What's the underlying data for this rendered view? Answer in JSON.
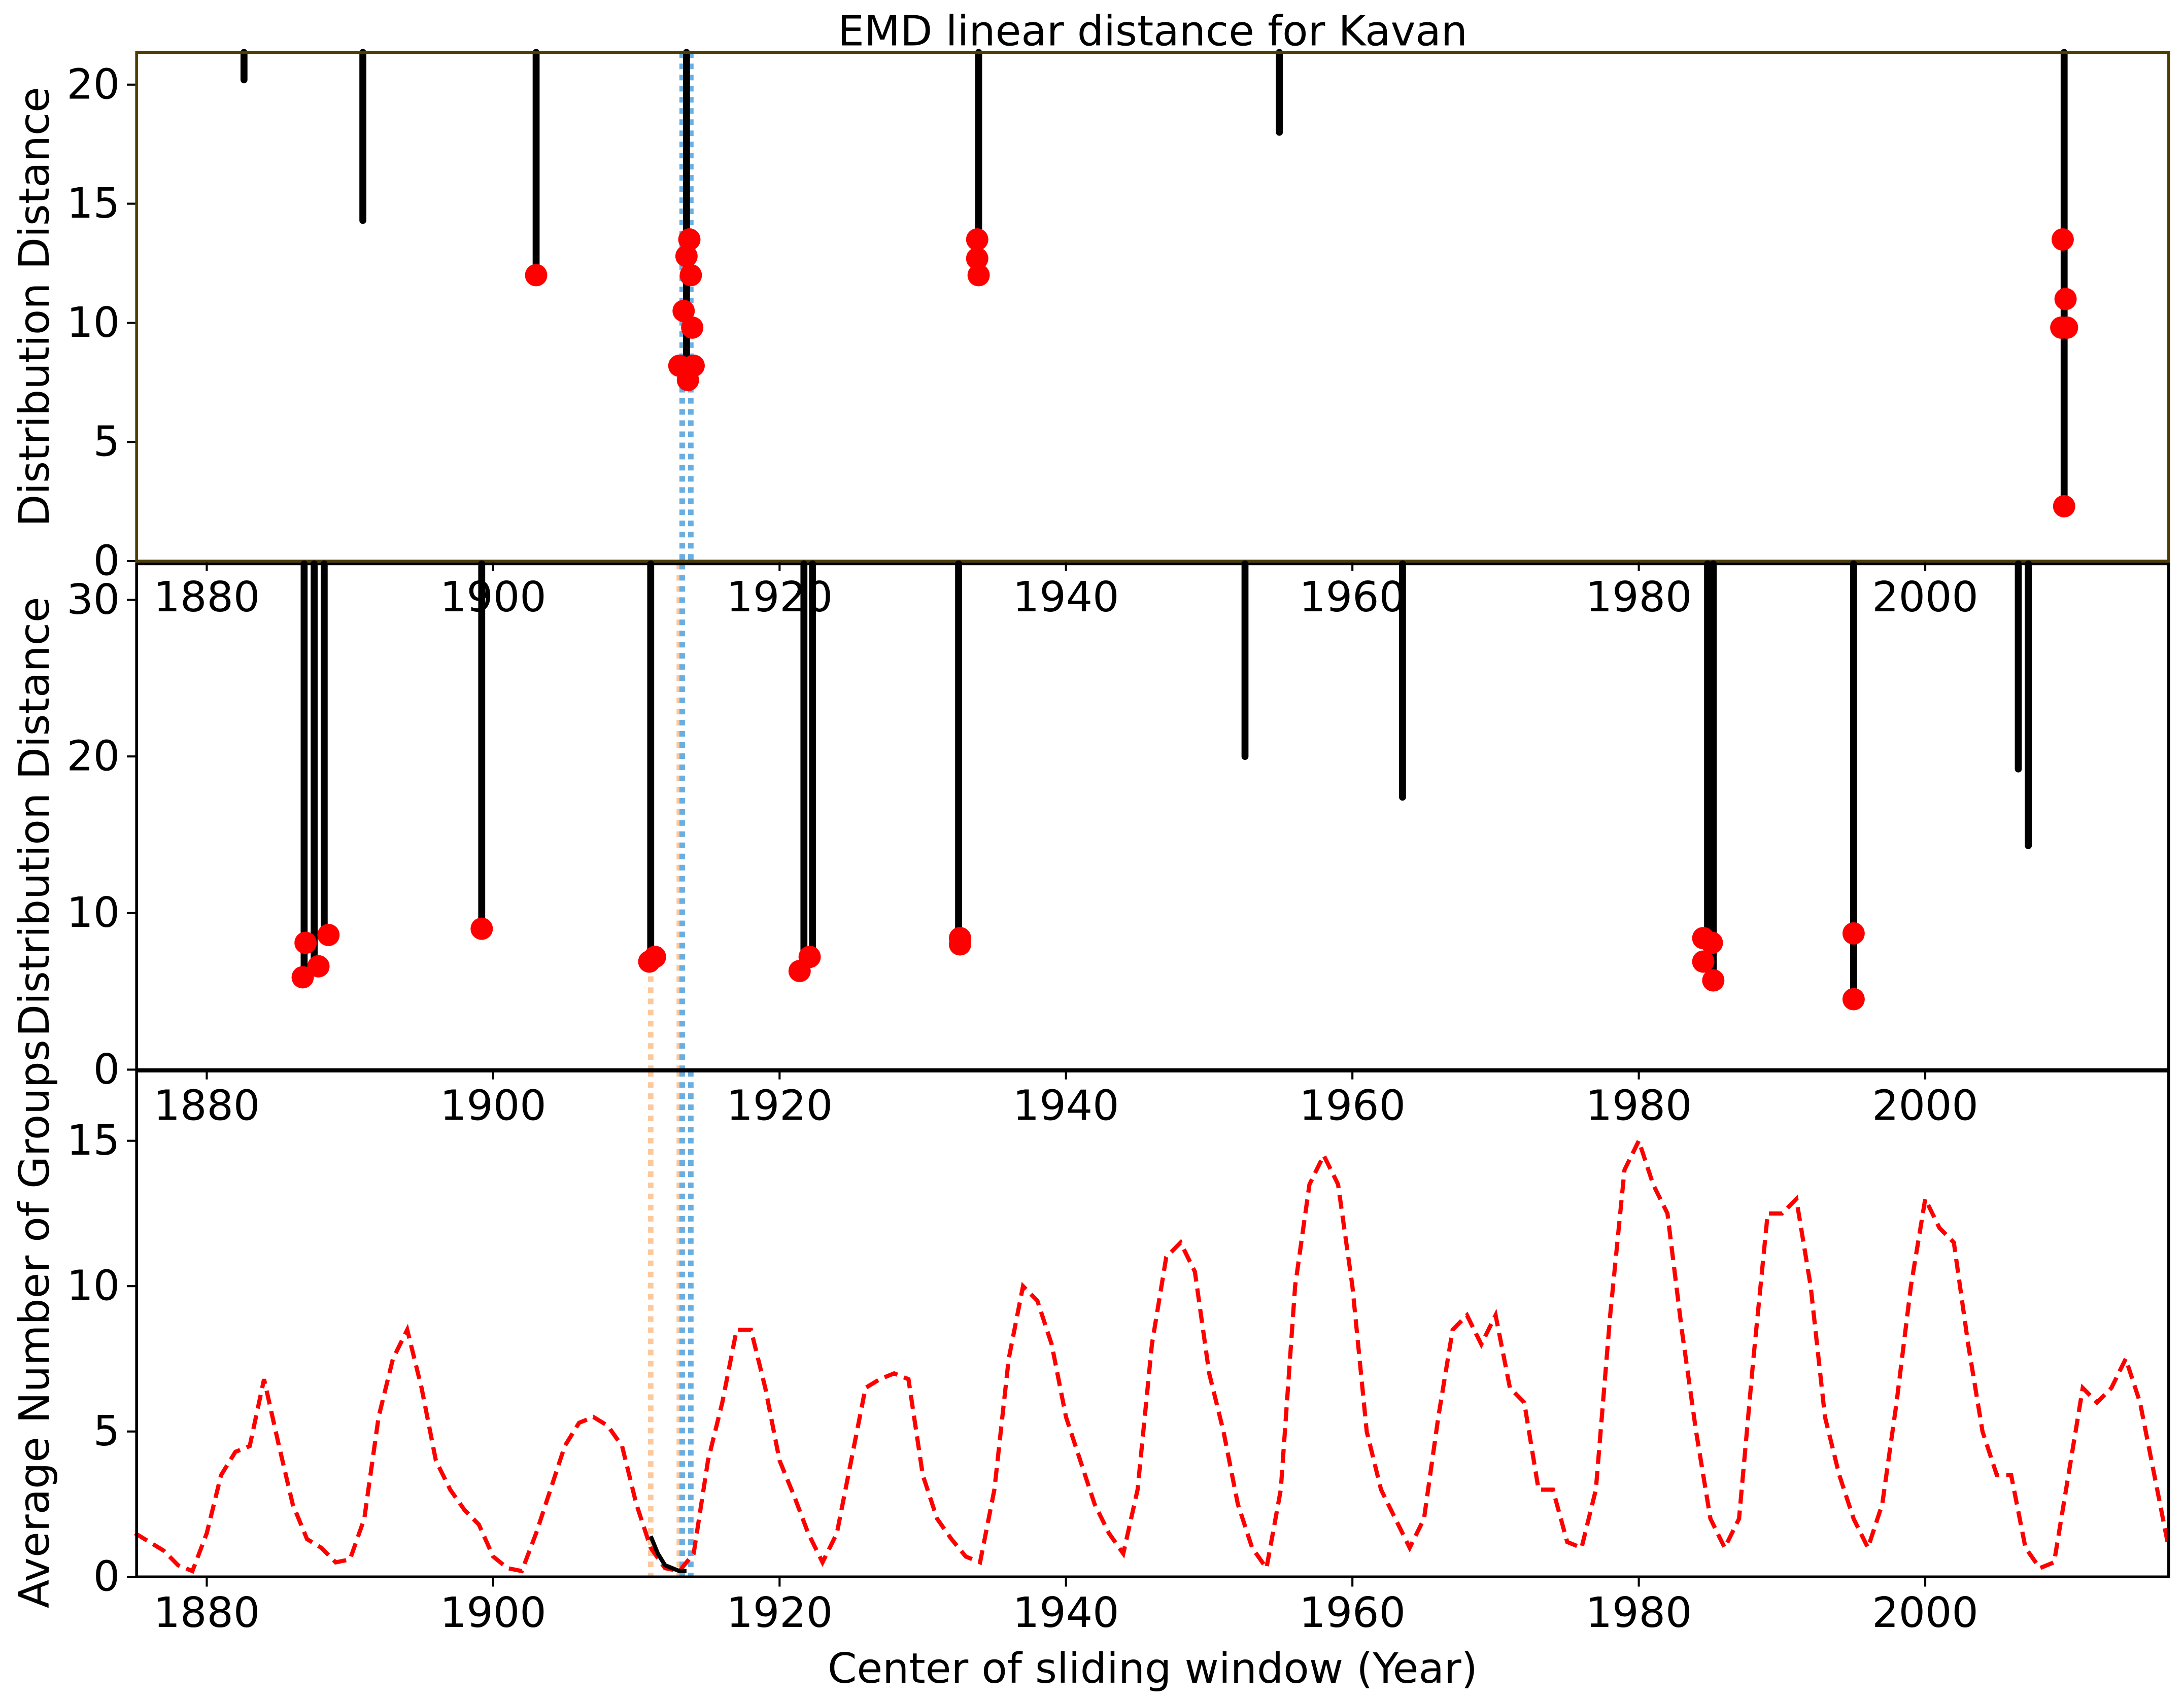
{
  "chart_data": [
    {
      "type": "stem",
      "title": "EMD linear distance for Kavan",
      "y_label": "Distribution Distance",
      "xlim": [
        1875.1,
        2017.0
      ],
      "xticks": [
        1880,
        1900,
        1920,
        1940,
        1960,
        1980,
        2000
      ],
      "ylim": [
        0,
        21.35
      ],
      "yticks": [
        0,
        5,
        10,
        15,
        20
      ],
      "stems": {
        "color": "#000000",
        "x": [
          1882.6,
          1890.9,
          1903.0,
          1913.5,
          1933.9,
          1954.9,
          2009.7
        ],
        "values": [
          20.2,
          14.3,
          12.0,
          7.5,
          12.0,
          18.0,
          2.3
        ]
      },
      "points": {
        "color": "#ff0000",
        "x": [
          1903.0,
          1913.0,
          1913.3,
          1913.5,
          1913.7,
          1913.8,
          1913.9,
          1914.0,
          1913.6,
          1933.8,
          1933.8,
          1933.9,
          2009.6,
          2009.8,
          2009.5,
          2009.9,
          2009.7
        ],
        "values": [
          12.0,
          8.2,
          10.5,
          12.8,
          13.5,
          12.0,
          9.8,
          8.2,
          7.6,
          13.5,
          12.7,
          12.0,
          13.5,
          11.0,
          9.8,
          9.8,
          2.3
        ]
      },
      "vlines": [
        {
          "x": 1913.2,
          "color": "#6aaee0"
        },
        {
          "x": 1913.8,
          "color": "#6aaee0"
        }
      ]
    },
    {
      "type": "stem",
      "y_label": "Distribution Distance",
      "xlim": [
        1875.1,
        2017.0
      ],
      "xticks": [
        1880,
        1900,
        1920,
        1940,
        1960,
        1980,
        2000
      ],
      "ylim": [
        0,
        32.3
      ],
      "yticks": [
        0,
        10,
        20,
        30
      ],
      "stems": {
        "color": "#000000",
        "x": [
          1886.8,
          1887.5,
          1888.2,
          1899.2,
          1911.0,
          1921.7,
          1922.3,
          1932.5,
          1952.5,
          1963.5,
          1984.8,
          1985.2,
          1995.0,
          2006.5,
          2007.2
        ],
        "values": [
          5.8,
          6.5,
          8.5,
          9.0,
          7.0,
          6.3,
          7.2,
          8.0,
          20.0,
          17.4,
          6.9,
          5.7,
          4.5,
          19.2,
          14.3
        ]
      },
      "points": {
        "color": "#ff0000",
        "x": [
          1886.7,
          1886.9,
          1887.8,
          1888.5,
          1899.2,
          1910.9,
          1911.3,
          1921.4,
          1922.1,
          1932.6,
          1932.6,
          1984.5,
          1984.5,
          1985.1,
          1985.2,
          1995.0,
          1995.0
        ],
        "values": [
          5.9,
          8.1,
          6.6,
          8.6,
          9.0,
          6.9,
          7.2,
          6.3,
          7.2,
          8.4,
          8.0,
          8.4,
          6.9,
          8.1,
          5.7,
          8.7,
          4.5
        ]
      },
      "vlines": [
        {
          "x": 1911.0,
          "color": "#fdc89b"
        },
        {
          "x": 1913.0,
          "color": "#fdc89b"
        },
        {
          "x": 1913.2,
          "color": "#6aaee0"
        }
      ]
    },
    {
      "type": "line",
      "x_label": "Center of sliding window (Year)",
      "y_label": "Average Number of Groups",
      "xlim": [
        1875.1,
        2017.0
      ],
      "xticks": [
        1880,
        1900,
        1920,
        1940,
        1960,
        1980,
        2000
      ],
      "ylim": [
        0,
        17.4
      ],
      "yticks": [
        0,
        5,
        10,
        15
      ],
      "series": [
        {
          "color": "#ff0000",
          "dashed": true,
          "x": [
            1875,
            1876,
            1877,
            1878,
            1879,
            1880,
            1881,
            1882,
            1883,
            1884,
            1885,
            1886,
            1887,
            1888,
            1889,
            1890,
            1891,
            1892,
            1893,
            1894,
            1895,
            1896,
            1897,
            1898,
            1899,
            1900,
            1901,
            1902,
            1903,
            1904,
            1905,
            1906,
            1907,
            1908,
            1909,
            1910,
            1911,
            1912,
            1913,
            1914,
            1915,
            1916,
            1917,
            1918,
            1919,
            1920,
            1921,
            1922,
            1923,
            1924,
            1925,
            1926,
            1927,
            1928,
            1929,
            1930,
            1931,
            1932,
            1933,
            1934,
            1935,
            1936,
            1937,
            1938,
            1939,
            1940,
            1941,
            1942,
            1943,
            1944,
            1945,
            1946,
            1947,
            1948,
            1949,
            1950,
            1951,
            1952,
            1953,
            1954,
            1955,
            1956,
            1957,
            1958,
            1959,
            1960,
            1961,
            1962,
            1963,
            1964,
            1965,
            1966,
            1967,
            1968,
            1969,
            1970,
            1971,
            1972,
            1973,
            1974,
            1975,
            1976,
            1977,
            1978,
            1979,
            1980,
            1981,
            1982,
            1983,
            1984,
            1985,
            1986,
            1987,
            1988,
            1989,
            1990,
            1991,
            1992,
            1993,
            1994,
            1995,
            1996,
            1997,
            1998,
            1999,
            2000,
            2001,
            2002,
            2003,
            2004,
            2005,
            2006,
            2007,
            2008,
            2009,
            2010,
            2011,
            2012,
            2013,
            2014,
            2015,
            2016,
            2017
          ],
          "values": [
            1.5,
            1.2,
            0.9,
            0.4,
            0.2,
            1.5,
            3.5,
            4.3,
            4.5,
            6.8,
            4.6,
            2.5,
            1.3,
            1.0,
            0.5,
            0.6,
            2.0,
            5.5,
            7.5,
            8.5,
            6.5,
            4.0,
            3.0,
            2.3,
            1.8,
            0.7,
            0.3,
            0.2,
            1.5,
            3.0,
            4.5,
            5.3,
            5.5,
            5.2,
            4.5,
            2.5,
            1.0,
            0.3,
            0.2,
            0.8,
            4.0,
            6.0,
            8.5,
            8.5,
            6.5,
            4.0,
            2.8,
            1.5,
            0.5,
            1.5,
            4.0,
            6.5,
            6.8,
            7.0,
            6.8,
            3.5,
            2.0,
            1.3,
            0.7,
            0.5,
            3.0,
            7.5,
            10.0,
            9.5,
            8.0,
            5.5,
            4.0,
            2.5,
            1.5,
            0.8,
            3.0,
            8.0,
            11.0,
            11.5,
            10.5,
            7.0,
            5.0,
            2.5,
            1.0,
            0.3,
            3.0,
            10.0,
            13.5,
            14.5,
            13.5,
            10.0,
            5.0,
            3.0,
            2.0,
            1.0,
            2.0,
            5.5,
            8.5,
            9.0,
            8.0,
            9.0,
            6.5,
            6.0,
            3.0,
            3.0,
            1.2,
            1.0,
            3.0,
            9.0,
            14.0,
            15.0,
            13.5,
            12.5,
            8.5,
            5.0,
            2.0,
            1.0,
            2.0,
            7.5,
            12.5,
            12.5,
            13.0,
            10.0,
            5.5,
            3.5,
            2.0,
            1.0,
            2.5,
            6.0,
            10.0,
            13.0,
            12.0,
            11.5,
            8.0,
            5.0,
            3.5,
            3.5,
            1.0,
            0.3,
            0.5,
            3.5,
            6.5,
            6.0,
            6.5,
            7.5,
            6.0,
            3.5,
            1.0
          ]
        },
        {
          "color": "#000000",
          "dashed": false,
          "x": [
            1911,
            1911.5,
            1912,
            1912.5,
            1913,
            1913.5
          ],
          "values": [
            1.4,
            0.8,
            0.4,
            0.3,
            0.2,
            0.2
          ]
        }
      ],
      "vlines": [
        {
          "x": 1911.0,
          "color": "#fdc89b"
        },
        {
          "x": 1913.0,
          "color": "#fdc89b"
        },
        {
          "x": 1913.2,
          "color": "#6aaee0"
        },
        {
          "x": 1913.8,
          "color": "#6aaee0"
        }
      ]
    }
  ]
}
